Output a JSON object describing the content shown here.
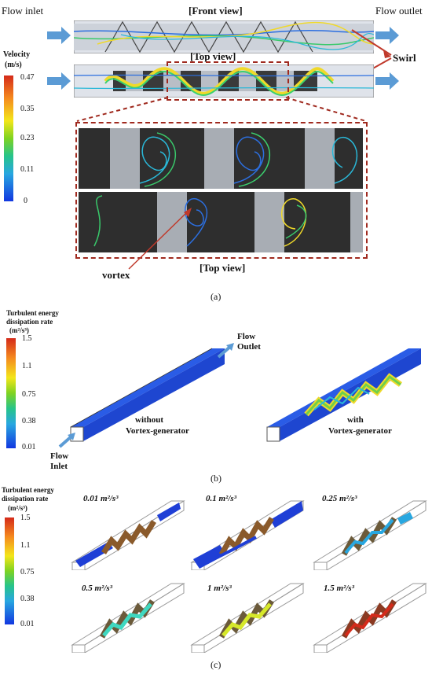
{
  "panel_a": {
    "flow_inlet": "Flow inlet",
    "flow_outlet": "Flow outlet",
    "front_view": "[Front view]",
    "top_view_1": "[Top view]",
    "top_view_2": "[Top view]",
    "swirl": "Swirl",
    "vortex": "vortex",
    "velocity_title": "Velocity",
    "velocity_unit": "(m/s)",
    "velocity_ticks": [
      "0.47",
      "0.35",
      "0.23",
      "0.11",
      "0"
    ],
    "label": "(a)"
  },
  "panel_b": {
    "cb_title_1": "Turbulent energy",
    "cb_title_2": "dissipation rate",
    "cb_unit": "(m²/s³)",
    "ticks": [
      "1.5",
      "1.1",
      "0.75",
      "0.38",
      "0.01"
    ],
    "flow_outlet_1": "Flow",
    "flow_outlet_2": "Outlet",
    "flow_inlet_1": "Flow",
    "flow_inlet_2": "Inlet",
    "without_1": "without",
    "without_2": "Vortex-generator",
    "with_1": "with",
    "with_2": "Vortex-generator",
    "label": "(b)"
  },
  "panel_c": {
    "cb_title_1": "Turbulent energy",
    "cb_title_2": "dissipation rate",
    "cb_unit": "(m²/s³)",
    "ticks": [
      "1.5",
      "1.1",
      "0.75",
      "0.38",
      "0.01"
    ],
    "isosurfaces": [
      "0.01 m²/s³",
      "0.1 m²/s³",
      "0.25 m²/s³",
      "0.5 m²/s³",
      "1 m²/s³",
      "1.5 m²/s³"
    ],
    "label": "(c)"
  }
}
